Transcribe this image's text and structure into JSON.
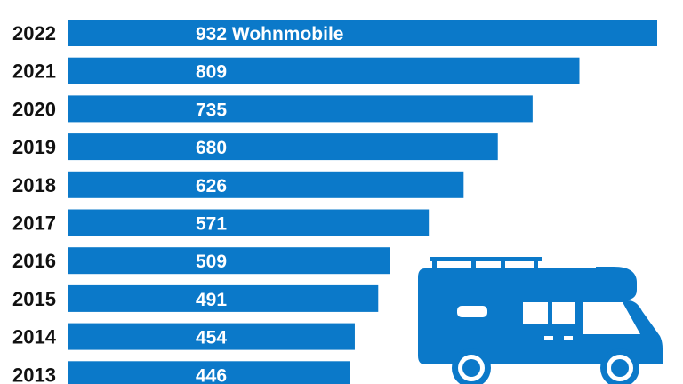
{
  "chart_data": {
    "type": "bar",
    "orientation": "horizontal",
    "categories": [
      "2022",
      "2021",
      "2020",
      "2019",
      "2018",
      "2017",
      "2016",
      "2015",
      "2014",
      "2013"
    ],
    "values": [
      932,
      809,
      735,
      680,
      626,
      571,
      509,
      491,
      454,
      446
    ],
    "value_labels": [
      "932 Wohnmobile",
      "809",
      "735",
      "680",
      "626",
      "571",
      "509",
      "491",
      "454",
      "446"
    ],
    "title": "",
    "xlabel": "",
    "ylabel": "",
    "xlim": [
      0,
      932
    ],
    "grid": false,
    "bar_color": "#0b79c9"
  },
  "illustration": {
    "icon": "camper-van-icon",
    "color": "#0b79c9"
  }
}
